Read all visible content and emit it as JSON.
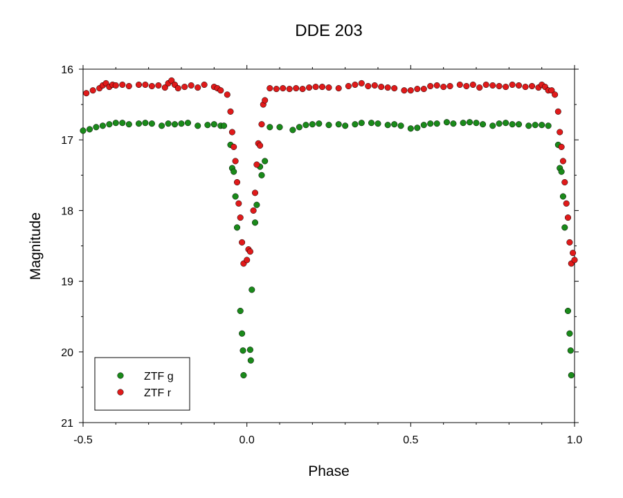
{
  "chart_data": {
    "type": "scatter",
    "title": "DDE 203",
    "xlabel": "Phase",
    "ylabel": "Magnitude",
    "xlim": [
      -0.5,
      1.0
    ],
    "ylim": [
      21,
      16
    ],
    "y_inverted": true,
    "x_ticks": [
      -0.5,
      0.0,
      0.5,
      1.0
    ],
    "x_tick_labels": [
      "-0.5",
      "0.0",
      "0.5",
      "1.0"
    ],
    "y_ticks": [
      16,
      17,
      18,
      19,
      20,
      21
    ],
    "y_tick_labels": [
      "16",
      "17",
      "18",
      "19",
      "20",
      "21"
    ],
    "grid": false,
    "legend_position": "bottom-left",
    "series": [
      {
        "name": "ZTF g",
        "color": "#1a8a1a",
        "points": [
          [
            -0.5,
            16.87
          ],
          [
            -0.48,
            16.85
          ],
          [
            -0.46,
            16.82
          ],
          [
            -0.44,
            16.8
          ],
          [
            -0.42,
            16.78
          ],
          [
            -0.4,
            16.76
          ],
          [
            -0.38,
            16.76
          ],
          [
            -0.36,
            16.78
          ],
          [
            -0.33,
            16.77
          ],
          [
            -0.31,
            16.76
          ],
          [
            -0.29,
            16.77
          ],
          [
            -0.26,
            16.8
          ],
          [
            -0.24,
            16.77
          ],
          [
            -0.22,
            16.78
          ],
          [
            -0.2,
            16.77
          ],
          [
            -0.18,
            16.76
          ],
          [
            -0.15,
            16.8
          ],
          [
            -0.12,
            16.79
          ],
          [
            -0.1,
            16.78
          ],
          [
            -0.08,
            16.8
          ],
          [
            -0.07,
            16.8
          ],
          [
            -0.05,
            17.07
          ],
          [
            -0.045,
            17.4
          ],
          [
            -0.04,
            17.45
          ],
          [
            -0.035,
            17.8
          ],
          [
            -0.03,
            18.24
          ],
          [
            -0.02,
            19.42
          ],
          [
            -0.015,
            19.74
          ],
          [
            -0.012,
            19.98
          ],
          [
            -0.01,
            20.33
          ],
          [
            0.01,
            19.97
          ],
          [
            0.012,
            20.12
          ],
          [
            0.015,
            19.12
          ],
          [
            0.025,
            18.17
          ],
          [
            0.03,
            17.92
          ],
          [
            0.04,
            17.38
          ],
          [
            0.045,
            17.5
          ],
          [
            0.055,
            17.3
          ],
          [
            0.07,
            16.82
          ],
          [
            0.1,
            16.82
          ],
          [
            0.14,
            16.86
          ],
          [
            0.16,
            16.82
          ],
          [
            0.18,
            16.79
          ],
          [
            0.2,
            16.78
          ],
          [
            0.22,
            16.77
          ],
          [
            0.25,
            16.79
          ],
          [
            0.28,
            16.78
          ],
          [
            0.3,
            16.8
          ],
          [
            0.33,
            16.78
          ],
          [
            0.35,
            16.76
          ],
          [
            0.38,
            16.76
          ],
          [
            0.4,
            16.77
          ],
          [
            0.43,
            16.79
          ],
          [
            0.45,
            16.78
          ],
          [
            0.47,
            16.8
          ],
          [
            0.5,
            16.84
          ],
          [
            0.52,
            16.83
          ],
          [
            0.54,
            16.79
          ],
          [
            0.56,
            16.77
          ],
          [
            0.58,
            16.77
          ],
          [
            0.61,
            16.75
          ],
          [
            0.63,
            16.77
          ],
          [
            0.66,
            16.76
          ],
          [
            0.68,
            16.75
          ],
          [
            0.7,
            16.76
          ],
          [
            0.72,
            16.78
          ],
          [
            0.75,
            16.8
          ],
          [
            0.77,
            16.77
          ],
          [
            0.79,
            16.76
          ],
          [
            0.81,
            16.78
          ],
          [
            0.83,
            16.78
          ],
          [
            0.86,
            16.8
          ],
          [
            0.88,
            16.79
          ],
          [
            0.9,
            16.79
          ],
          [
            0.92,
            16.8
          ],
          [
            0.95,
            17.07
          ],
          [
            0.955,
            17.4
          ],
          [
            0.96,
            17.45
          ],
          [
            0.965,
            17.8
          ],
          [
            0.97,
            18.24
          ],
          [
            0.98,
            19.42
          ],
          [
            0.985,
            19.74
          ],
          [
            0.988,
            19.98
          ],
          [
            0.99,
            20.33
          ]
        ]
      },
      {
        "name": "ZTF r",
        "color": "#e01a1a",
        "points": [
          [
            -0.49,
            16.34
          ],
          [
            -0.47,
            16.3
          ],
          [
            -0.45,
            16.27
          ],
          [
            -0.44,
            16.23
          ],
          [
            -0.43,
            16.2
          ],
          [
            -0.42,
            16.25
          ],
          [
            -0.41,
            16.22
          ],
          [
            -0.4,
            16.23
          ],
          [
            -0.38,
            16.22
          ],
          [
            -0.36,
            16.24
          ],
          [
            -0.33,
            16.22
          ],
          [
            -0.31,
            16.22
          ],
          [
            -0.29,
            16.24
          ],
          [
            -0.27,
            16.23
          ],
          [
            -0.25,
            16.26
          ],
          [
            -0.24,
            16.2
          ],
          [
            -0.23,
            16.16
          ],
          [
            -0.22,
            16.22
          ],
          [
            -0.21,
            16.27
          ],
          [
            -0.19,
            16.25
          ],
          [
            -0.17,
            16.23
          ],
          [
            -0.15,
            16.26
          ],
          [
            -0.13,
            16.22
          ],
          [
            -0.1,
            16.25
          ],
          [
            -0.09,
            16.27
          ],
          [
            -0.08,
            16.3
          ],
          [
            -0.06,
            16.36
          ],
          [
            -0.05,
            16.6
          ],
          [
            -0.045,
            16.89
          ],
          [
            -0.04,
            17.1
          ],
          [
            -0.035,
            17.3
          ],
          [
            -0.03,
            17.6
          ],
          [
            -0.025,
            17.9
          ],
          [
            -0.02,
            18.1
          ],
          [
            -0.015,
            18.45
          ],
          [
            -0.01,
            18.75
          ],
          [
            0.0,
            18.7
          ],
          [
            0.005,
            18.55
          ],
          [
            0.01,
            18.58
          ],
          [
            0.02,
            18.0
          ],
          [
            0.025,
            17.75
          ],
          [
            0.03,
            17.35
          ],
          [
            0.035,
            17.05
          ],
          [
            0.04,
            17.08
          ],
          [
            0.045,
            16.78
          ],
          [
            0.05,
            16.5
          ],
          [
            0.055,
            16.44
          ],
          [
            0.07,
            16.27
          ],
          [
            0.09,
            16.28
          ],
          [
            0.11,
            16.27
          ],
          [
            0.13,
            16.28
          ],
          [
            0.15,
            16.27
          ],
          [
            0.17,
            16.28
          ],
          [
            0.19,
            16.26
          ],
          [
            0.21,
            16.25
          ],
          [
            0.23,
            16.25
          ],
          [
            0.25,
            16.26
          ],
          [
            0.28,
            16.27
          ],
          [
            0.31,
            16.24
          ],
          [
            0.33,
            16.22
          ],
          [
            0.35,
            16.2
          ],
          [
            0.37,
            16.24
          ],
          [
            0.39,
            16.23
          ],
          [
            0.41,
            16.25
          ],
          [
            0.43,
            16.26
          ],
          [
            0.45,
            16.27
          ],
          [
            0.48,
            16.3
          ],
          [
            0.5,
            16.3
          ],
          [
            0.52,
            16.28
          ],
          [
            0.54,
            16.28
          ],
          [
            0.56,
            16.24
          ],
          [
            0.58,
            16.23
          ],
          [
            0.6,
            16.25
          ],
          [
            0.62,
            16.24
          ],
          [
            0.65,
            16.22
          ],
          [
            0.67,
            16.24
          ],
          [
            0.69,
            16.22
          ],
          [
            0.71,
            16.26
          ],
          [
            0.73,
            16.22
          ],
          [
            0.75,
            16.23
          ],
          [
            0.77,
            16.24
          ],
          [
            0.79,
            16.25
          ],
          [
            0.81,
            16.22
          ],
          [
            0.83,
            16.23
          ],
          [
            0.85,
            16.25
          ],
          [
            0.87,
            16.24
          ],
          [
            0.89,
            16.26
          ],
          [
            0.9,
            16.22
          ],
          [
            0.91,
            16.25
          ],
          [
            0.92,
            16.3
          ],
          [
            0.93,
            16.3
          ],
          [
            0.94,
            16.36
          ],
          [
            0.95,
            16.6
          ],
          [
            0.955,
            16.89
          ],
          [
            0.96,
            17.1
          ],
          [
            0.965,
            17.3
          ],
          [
            0.97,
            17.6
          ],
          [
            0.975,
            17.9
          ],
          [
            0.98,
            18.1
          ],
          [
            0.985,
            18.45
          ],
          [
            0.99,
            18.75
          ],
          [
            0.995,
            18.6
          ],
          [
            1.0,
            18.7
          ]
        ]
      }
    ]
  }
}
